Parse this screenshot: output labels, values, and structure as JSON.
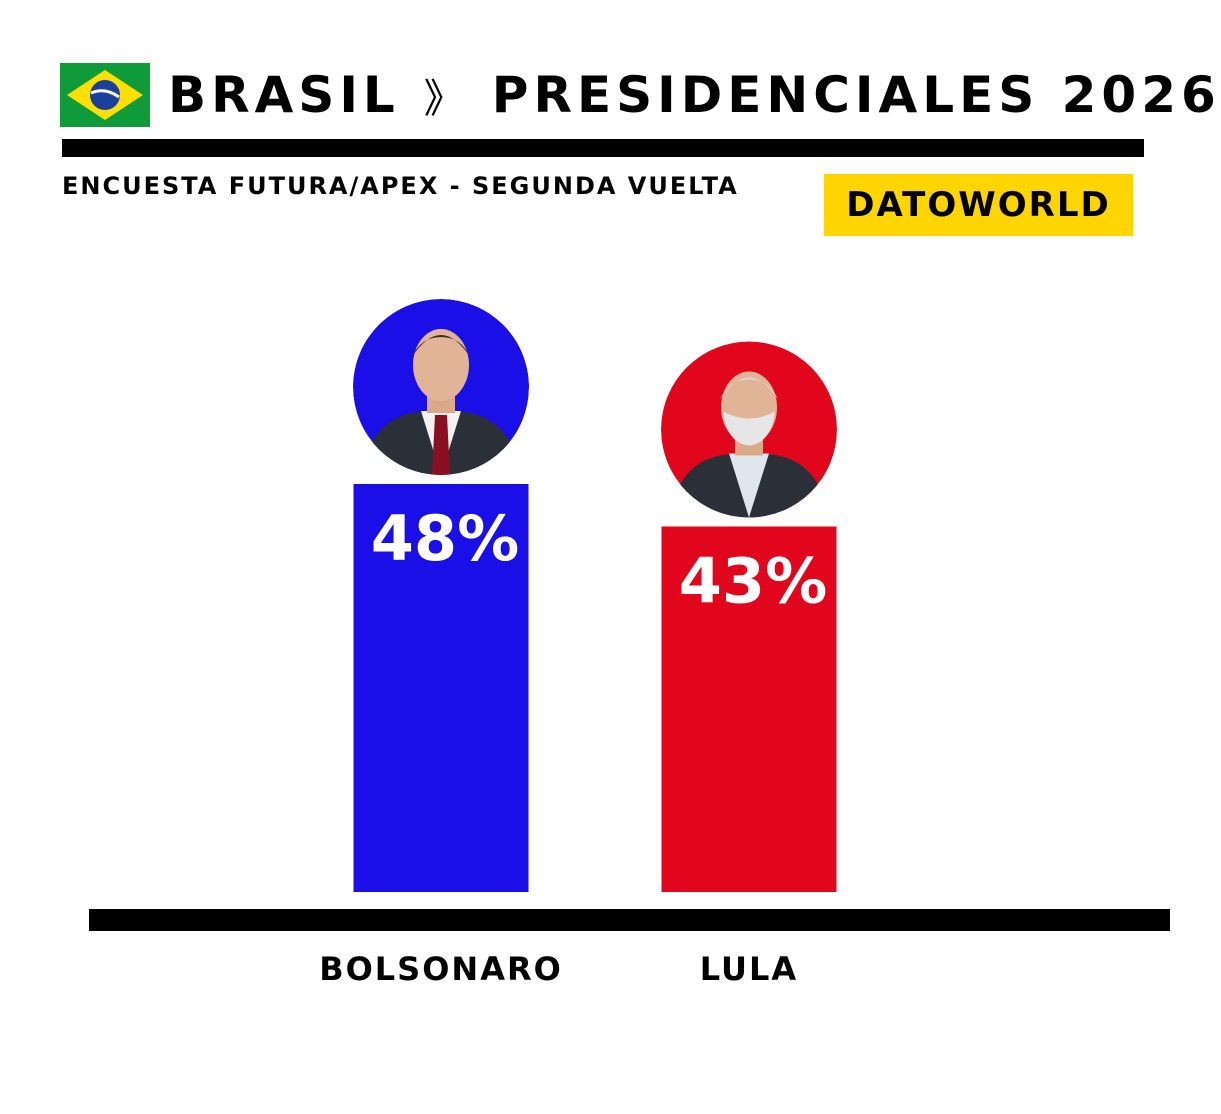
{
  "header": {
    "country": "BRASIL",
    "separator": "》",
    "title": "PRESIDENCIALES 2026",
    "subtitle": "ENCUESTA FUTURA/APEX - SEGUNDA VUELTA",
    "brand": "DATOWORLD"
  },
  "colors": {
    "bolsonaro": "#1a0fe6",
    "lula": "#e1061b",
    "brand_bg": "#ffd500",
    "flag_green": "#0f9b3a",
    "flag_yellow": "#fedf00",
    "flag_blue": "#1b3f9c"
  },
  "chart_data": {
    "type": "bar",
    "categories": [
      "BOLSONARO",
      "LULA"
    ],
    "values": [
      48,
      43
    ],
    "value_labels": [
      "48%",
      "43%"
    ],
    "unit": "%",
    "ylim": [
      0,
      100
    ],
    "grid": false,
    "legend": "none"
  }
}
